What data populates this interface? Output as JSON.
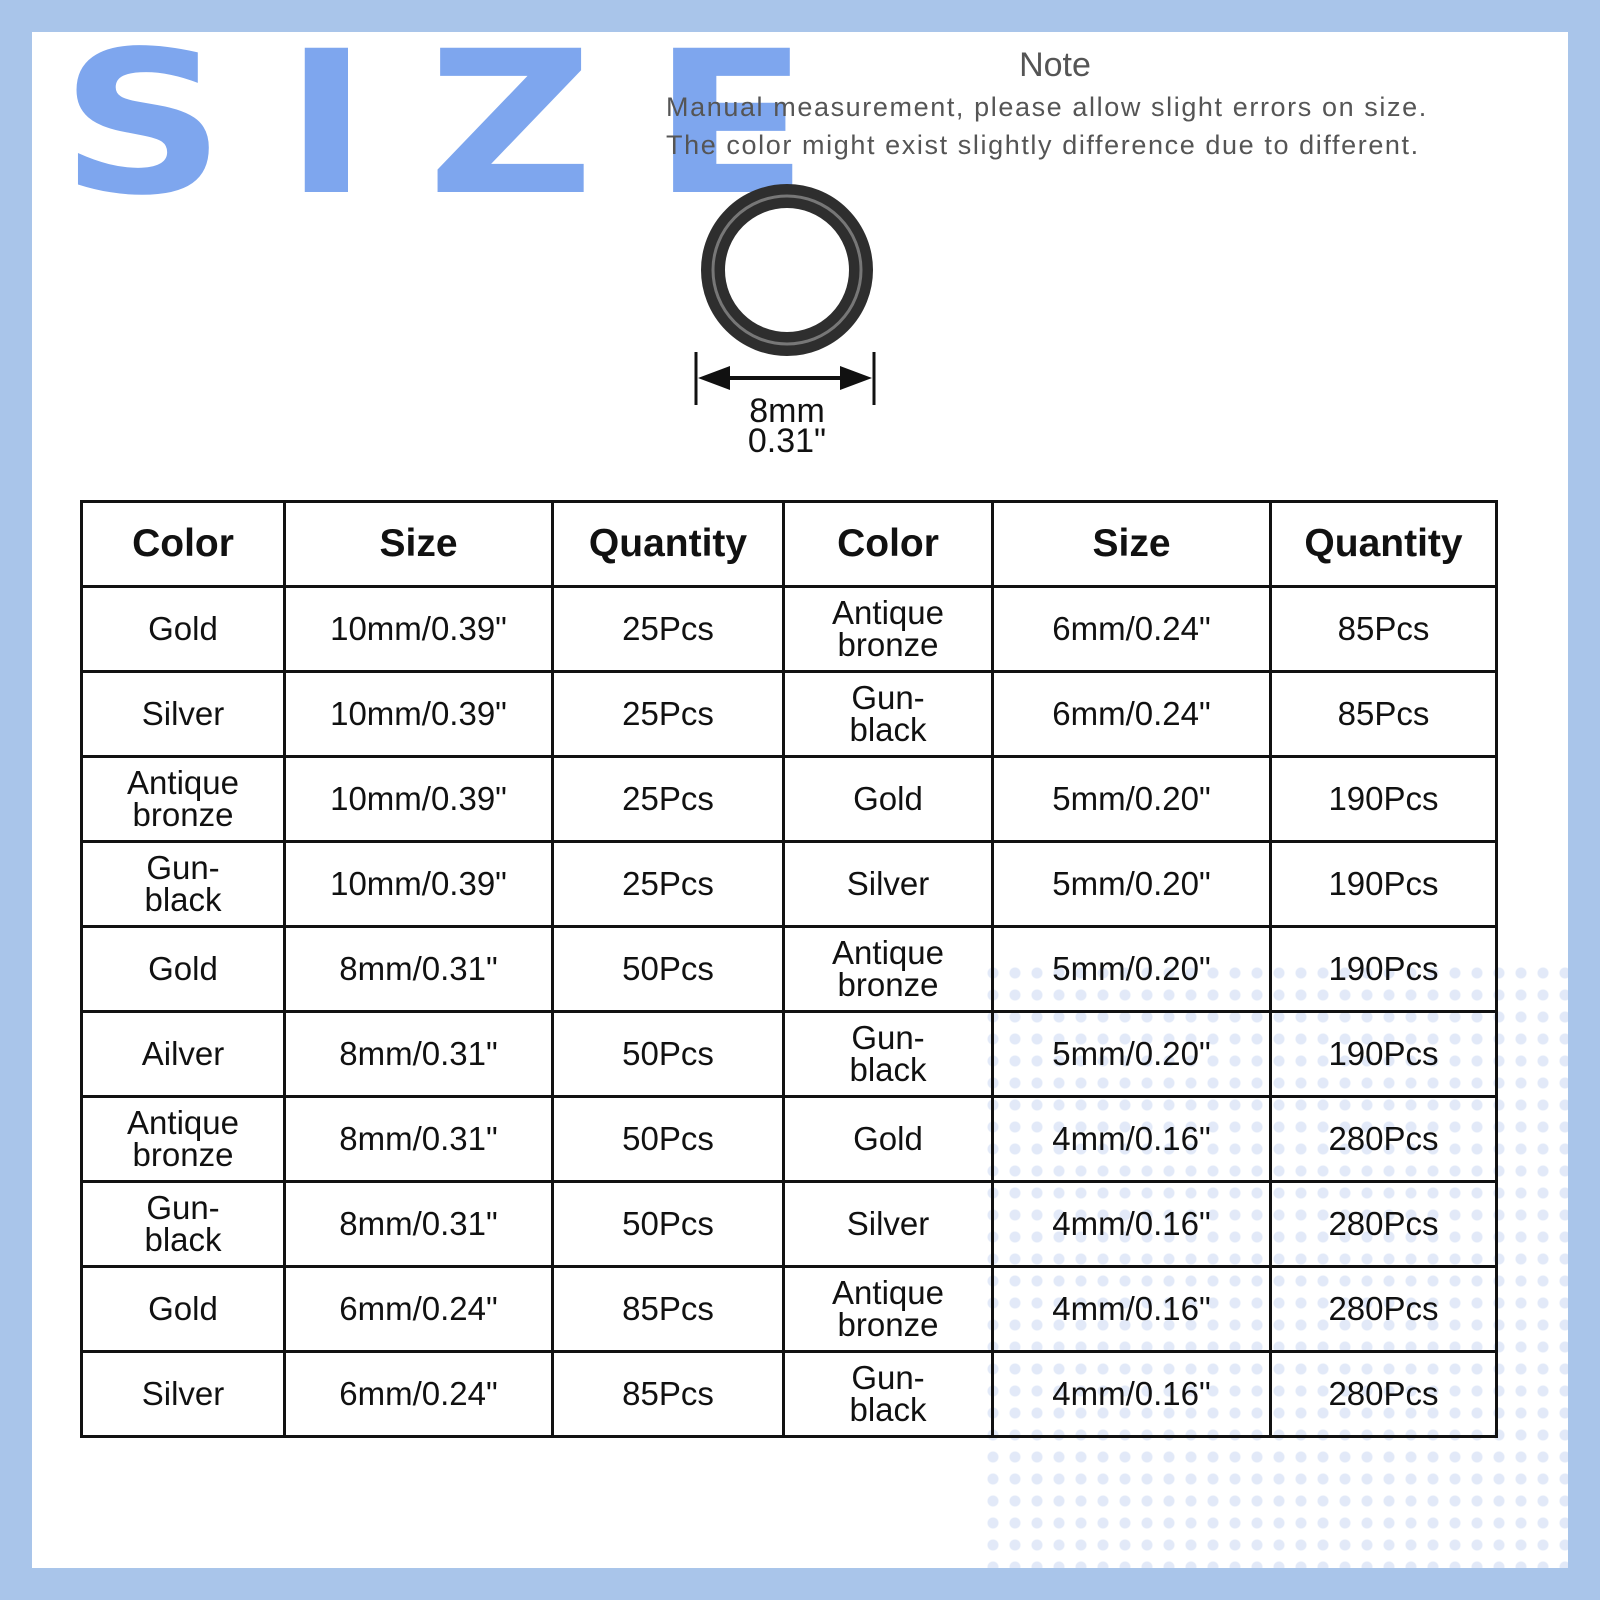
{
  "header": {
    "title": "SIZE",
    "note_title": "Note",
    "note_lines": [
      "Manual measurement, please allow slight errors on size.",
      "The color might exist slightly difference due to different."
    ]
  },
  "ring": {
    "size_mm": "8mm",
    "size_in": "0.31\""
  },
  "table": {
    "columns": [
      "Color",
      "Size",
      "Quantity",
      "Color",
      "Size",
      "Quantity"
    ],
    "rows": [
      [
        "Gold",
        "10mm/0.39\"",
        "25Pcs",
        "Antique bronze",
        "6mm/0.24\"",
        "85Pcs"
      ],
      [
        "Silver",
        "10mm/0.39\"",
        "25Pcs",
        "Gun-black",
        "6mm/0.24\"",
        "85Pcs"
      ],
      [
        "Antique bronze",
        "10mm/0.39\"",
        "25Pcs",
        "Gold",
        "5mm/0.20\"",
        "190Pcs"
      ],
      [
        "Gun-black",
        "10mm/0.39\"",
        "25Pcs",
        "Silver",
        "5mm/0.20\"",
        "190Pcs"
      ],
      [
        "Gold",
        "8mm/0.31\"",
        "50Pcs",
        "Antique bronze",
        "5mm/0.20\"",
        "190Pcs"
      ],
      [
        "Ailver",
        "8mm/0.31\"",
        "50Pcs",
        "Gun-black",
        "5mm/0.20\"",
        "190Pcs"
      ],
      [
        "Antique bronze",
        "8mm/0.31\"",
        "50Pcs",
        "Gold",
        "4mm/0.16\"",
        "280Pcs"
      ],
      [
        "Gun-black",
        "8mm/0.31\"",
        "50Pcs",
        "Silver",
        "4mm/0.16\"",
        "280Pcs"
      ],
      [
        "Gold",
        "6mm/0.24\"",
        "85Pcs",
        "Antique bronze",
        "4mm/0.16\"",
        "280Pcs"
      ],
      [
        "Silver",
        "6mm/0.24\"",
        "85Pcs",
        "Gun-black",
        "4mm/0.16\"",
        "280Pcs"
      ]
    ]
  }
}
